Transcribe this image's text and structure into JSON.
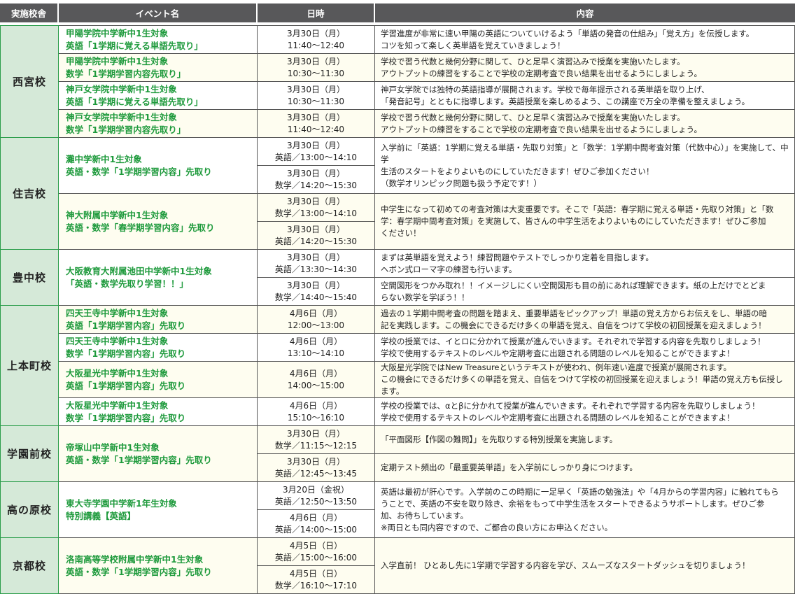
{
  "header": {
    "school": "実施校舎",
    "event": "イベント名",
    "datetime": "日時",
    "content": "内容"
  },
  "colors": {
    "header_bg": "#58585a",
    "school_bg": "#d5e9d8",
    "accent_green": "#1e9a3c",
    "cream": "#fefdf0",
    "white": "#ffffff"
  },
  "schools": [
    {
      "name": "西宮校",
      "events": [
        {
          "bg": "#ffffff",
          "title": [
            "甲陽学院中学新中1生対象",
            "英語「1学期に覚える単語先取り」"
          ],
          "slots": [
            {
              "date": "3月30日（月）",
              "time": "11:40〜12:40"
            }
          ],
          "contents": [
            [
              "学習進度が非常に速い甲陽の英語についていけるよう「単語の発音の仕組み」「覚え方」を伝授します。",
              "コツを知って楽しく英単語を覚えていきましょう！"
            ]
          ]
        },
        {
          "bg": "#fefdf0",
          "title": [
            "甲陽学院中学新中1生対象",
            "数学「1学期学習内容先取り」"
          ],
          "slots": [
            {
              "date": "3月30日（月）",
              "time": "10:30〜11:30"
            }
          ],
          "contents": [
            [
              "学校で習う代数と幾何分野に関して、ひと足早く演習込みで授業を実施いたします。",
              "アウトプットの練習をすることで学校の定期考査で良い結果を出せるようにしましょう。"
            ]
          ]
        },
        {
          "bg": "#ffffff",
          "title": [
            "神戸女学院中学新中1生対象",
            "英語「1学期に覚える単語先取り」"
          ],
          "slots": [
            {
              "date": "3月30日（月）",
              "time": "10:30〜11:30"
            }
          ],
          "contents": [
            [
              "神戸女学院では独特の英語指導が展開されます。学校で毎年提示される英単語を取り上げ、",
              "「発音記号」とともに指導します。英語授業を楽しめるよう、この講座で万全の準備を整えましょう。"
            ]
          ]
        },
        {
          "bg": "#fefdf0",
          "title": [
            "神戸女学院中学新中1生対象",
            "数学「1学期学習内容先取り」"
          ],
          "slots": [
            {
              "date": "3月30日（月）",
              "time": "11:40〜12:40"
            }
          ],
          "contents": [
            [
              "学校で習う代数と幾何分野に関して、ひと足早く演習込みで授業を実施いたします。",
              "アウトプットの練習をすることで学校の定期考査で良い結果を出せるようにしましょう。"
            ]
          ]
        }
      ]
    },
    {
      "name": "住吉校",
      "events": [
        {
          "bg": "#ffffff",
          "title": [
            "灘中学新中1生対象",
            "英語・数学「1学期学習内容」先取り"
          ],
          "slots": [
            {
              "date": "3月30日（月）",
              "time": "英語／13:00〜14:10"
            },
            {
              "date": "3月30日（月）",
              "time": "数学／14:20〜15:30"
            }
          ],
          "contents": [
            [
              "入学前に「英語：1学期に覚える単語・先取り対策」と「数学：1学期中間考査対策（代数中心）」を実施して、中学",
              "生活のスタートをよりよいものにしていただきます！ぜひご参加ください！",
              "（数学オリンピック問題も扱う予定です！）"
            ]
          ]
        },
        {
          "bg": "#fefdf0",
          "title": [
            "神大附属中学新中1生対象",
            "英語・数学「春学期学習内容」先取り"
          ],
          "slots": [
            {
              "date": "3月30日（月）",
              "time": "数学／13:00〜14:10"
            },
            {
              "date": "3月30日（月）",
              "time": "英語／14:20〜15:30"
            }
          ],
          "contents": [
            [
              "中学生になって初めての考査対策は大変重要です。そこで「英語：春学期に覚える単語・先取り対策」と「数",
              "学：春学期中間考査対策」を実施して、皆さんの中学生活をよりよいものにしていただきます！ぜひご参加",
              "ください！"
            ]
          ]
        }
      ]
    },
    {
      "name": "豊中校",
      "events": [
        {
          "bg": "#ffffff",
          "title": [
            "大阪教育大附属池田中学新中1生対象",
            "「英語・数学先取り学習！！」"
          ],
          "slots": [
            {
              "date": "3月30日（月）",
              "time": "英語／13:30〜14:30"
            },
            {
              "date": "3月30日（月）",
              "time": "数学／14:40〜15:40"
            }
          ],
          "contents": [
            [
              "まずは英単語を覚えよう！練習問題やテストでしっかり定着を目指します。",
              "ヘボン式ローマ字の練習も行います。"
            ],
            [
              "空間図形をつかみ取れ！！イメージしにくい空間図形も目の前にあれば理解できます。紙の上だけでとどま",
              "らない数学を学ぼう！！"
            ]
          ]
        }
      ]
    },
    {
      "name": "上本町校",
      "events": [
        {
          "bg": "#fefdf0",
          "title": [
            "四天王寺中学新中1生対象",
            "英語「1学期学習内容」先取り"
          ],
          "slots": [
            {
              "date": "4月6日（月）",
              "time": "12:00〜13:00"
            }
          ],
          "contents": [
            [
              "過去の１学期中間考査の問題を踏まえ、重要単語をピックアップ！単語の覚え方からお伝えをし、単語の暗",
              "記を実践します。この機会にできるだけ多くの単語を覚え、自信をつけて学校の初回授業を迎えましょう！"
            ]
          ]
        },
        {
          "bg": "#ffffff",
          "title": [
            "四天王寺中学新中1生対象",
            "数学「1学期学習内容」先取り"
          ],
          "slots": [
            {
              "date": "4月6日（月）",
              "time": "13:10〜14:10"
            }
          ],
          "contents": [
            [
              "学校の授業では、イとロに分かれて授業が進んでいきます。それぞれで学習する内容を先取りしましょう！",
              "学校で使用するテキストのレベルや定期考査に出題される問題のレベルを知ることができますよ！"
            ]
          ]
        },
        {
          "bg": "#fefdf0",
          "title": [
            "大阪星光中学新中1生対象",
            "英語「1学期学習内容」先取り"
          ],
          "slots": [
            {
              "date": "4月6日（月）",
              "time": "14:00〜15:00"
            }
          ],
          "contents": [
            [
              "大阪星光学院ではNew Treasureというテキストが使われ、例年速い進度で授業が展開されます。",
              "この機会にできるだけ多くの単語を覚え、自信をつけて学校の初回授業を迎えましょう！単語の覚え方も伝授します。"
            ]
          ]
        },
        {
          "bg": "#ffffff",
          "title": [
            "大阪星光中学新中1生対象",
            "数学「1学期学習内容」先取り"
          ],
          "slots": [
            {
              "date": "4月6日（月）",
              "time": "15:10〜16:10"
            }
          ],
          "contents": [
            [
              "学校の授業では、αとβに分かれて授業が進んでいきます。それぞれで学習する内容を先取りしましょう！",
              "学校で使用するテキストのレベルや定期考査に出題される問題のレベルを知ることができますよ！"
            ]
          ]
        }
      ]
    },
    {
      "name": "学園前校",
      "events": [
        {
          "bg": "#fefdf0",
          "title": [
            "帝塚山中学新中1生対象",
            "英語・数学「1学期学習内容」先取り"
          ],
          "slots": [
            {
              "date": "3月30日（月）",
              "time": "数学／11:15〜12:15"
            },
            {
              "date": "3月30日（月）",
              "time": "英語／12:45〜13:45"
            }
          ],
          "contents": [
            [
              "「平面図形【作図の難問】」を先取りする特別授業を実施します。"
            ],
            [
              "定期テスト頻出の「最重要英単語」を入学前にしっかり身につけます。"
            ]
          ]
        }
      ]
    },
    {
      "name": "高の原校",
      "events": [
        {
          "bg": "#ffffff",
          "title": [
            "東大寺学園中学新1年生対象",
            "特別講義【英語】"
          ],
          "slots": [
            {
              "date": "3月20日（金祝）",
              "time": "英語／12:50〜13:50"
            },
            {
              "date": "4月6日（月）",
              "time": "英語／14:00〜15:00"
            }
          ],
          "contents": [
            [
              "英語は最初が肝心です。入学前のこの時期に一足早く「英語の勉強法」や「4月からの学習内容」に触れてもら",
              "うことで、英語の不安を取り除き、余裕をもって中学生活をスタートできるようサポートします。ぜひご参",
              "加、お待ちしています。",
              "※両日とも同内容ですので、ご都合の良い方にお申込ください。"
            ]
          ]
        }
      ]
    },
    {
      "name": "京都校",
      "events": [
        {
          "bg": "#fefdf0",
          "title": [
            "洛南高等学校附属中学新中1生対象",
            "英語・数学「1学期学習内容」先取り"
          ],
          "slots": [
            {
              "date": "4月5日（日）",
              "time": "英語／15:00〜16:00"
            },
            {
              "date": "4月5日（日）",
              "time": "数学／16:10〜17:10"
            }
          ],
          "contents": [
            [
              "入学直前！ ひとあし先に1学期で学習する内容を学び、スムーズなスタートダッシュを切りましょう！"
            ]
          ]
        }
      ]
    }
  ]
}
